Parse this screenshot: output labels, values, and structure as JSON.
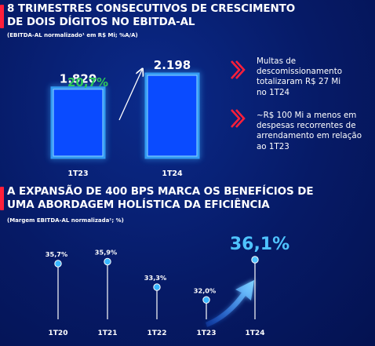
{
  "colors": {
    "accent_red": "#ff1f3a",
    "bar_fill": "#0a4bff",
    "glow": "#39a8ff",
    "growth_green": "#2ec95a",
    "highlight_cyan": "#4fc3ff"
  },
  "section1": {
    "title_line1": "8 TRIMESTRES CONSECUTIVOS DE CRESCIMENTO",
    "title_line2": "DE DOIS DÍGITOS NO EBITDA-AL",
    "subtitle": "(EBITDA-AL normalizado¹ em R$ Mi; %A/A)"
  },
  "bullets": [
    {
      "icon": "chevron-right-icon",
      "text_lines": [
        "Multas de",
        "descomissionamento",
        "totalizaram R$ 27 Mi",
        "no 1T24"
      ]
    },
    {
      "icon": "chevron-right-icon",
      "text_lines": [
        "~R$ 100 Mi a menos em",
        "despesas recorrentes de",
        "arrendamento em relação",
        "ao 1T23"
      ]
    }
  ],
  "section2": {
    "title_line1": "A EXPANSÃO DE 400 BPS MARCA OS BENEFÍCIOS DE",
    "title_line2": "UMA ABORDAGEM HOLÍSTICA DA EFICIÊNCIA",
    "subtitle": "(Margem EBITDA-AL normalizada¹; %)"
  },
  "chart_data": [
    {
      "type": "bar",
      "categories": [
        "1T23",
        "1T24"
      ],
      "values": [
        1820,
        2198
      ],
      "value_labels": [
        "1.820",
        "2.198"
      ],
      "growth_label": "20,7%",
      "title": "",
      "xlabel": "",
      "ylabel": ""
    },
    {
      "type": "scatter",
      "categories": [
        "1T20",
        "1T21",
        "1T22",
        "1T23",
        "1T24"
      ],
      "values": [
        35.7,
        35.9,
        33.3,
        32.0,
        36.1
      ],
      "value_labels": [
        "35,7%",
        "35,9%",
        "33,3%",
        "32,0%",
        "36,1%"
      ],
      "highlight_index": 4,
      "title": "",
      "xlabel": "",
      "ylabel": ""
    }
  ]
}
